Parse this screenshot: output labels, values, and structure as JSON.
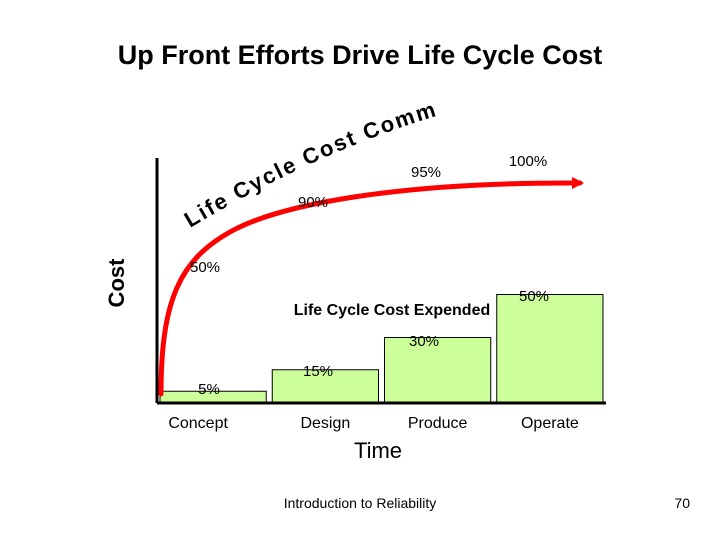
{
  "slide": {
    "title": "Up Front Efforts Drive Life Cycle Cost",
    "footer": "Introduction to Reliability",
    "page_number": "70"
  },
  "colors": {
    "bar_fill": "#ccff99",
    "curve": "#ff0000",
    "axis": "#000000"
  },
  "chart_data": {
    "type": "bar",
    "title": "",
    "xlabel": "Time",
    "ylabel": "Cost",
    "ylim": [
      0,
      100
    ],
    "grid": false,
    "categories": [
      "Concept",
      "Design",
      "Produce",
      "Operate"
    ],
    "series": [
      {
        "name": "Life Cycle Cost Expended",
        "values": [
          5,
          15,
          30,
          50
        ],
        "labels": [
          "5%",
          "15%",
          "30%",
          "50%"
        ]
      },
      {
        "name": "Life Cycle Cost Committed",
        "values": [
          50,
          90,
          95,
          100
        ],
        "labels": [
          "50%",
          "90%",
          "95%",
          "100%"
        ]
      }
    ]
  }
}
